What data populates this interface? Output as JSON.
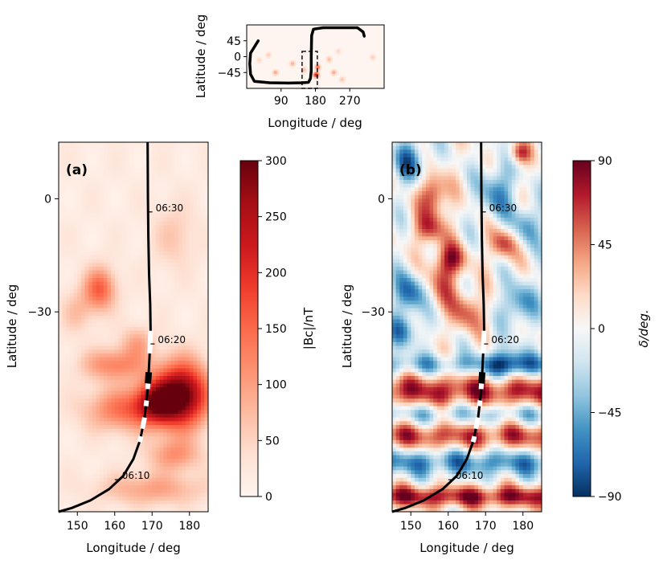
{
  "figure": {
    "inset": {
      "xlabel": "Longitude / deg",
      "ylabel": "Latitude / deg",
      "xticks": [
        {
          "value": 90,
          "label": "90"
        },
        {
          "value": 180,
          "label": "180"
        },
        {
          "value": 270,
          "label": "270"
        }
      ],
      "yticks": [
        {
          "value": 45,
          "label": "45"
        },
        {
          "value": 0,
          "label": "0"
        },
        {
          "value": -45,
          "label": "−45"
        }
      ],
      "xlim": [
        0,
        360
      ],
      "ylim": [
        -90,
        90
      ],
      "box": {
        "lon": [
          145,
          185
        ],
        "lat": [
          -90,
          15
        ]
      }
    },
    "panel_a": {
      "label": "(a)",
      "colorbar_label": "|Bc|/nT",
      "colorbar_ticks": [
        "0",
        "50",
        "100",
        "150",
        "200",
        "250",
        "300"
      ]
    },
    "panel_b": {
      "label": "(b)",
      "colorbar_label": "δ/deg.",
      "colorbar_ticks": [
        "−90",
        "−45",
        "0",
        "45",
        "90"
      ]
    },
    "main_xlabel": "Longitude / deg",
    "main_ylabel": "Latitude / deg",
    "main_xticks": [
      "150",
      "160",
      "170",
      "180"
    ],
    "main_yticks": [
      "0",
      "−30"
    ],
    "time_labels": [
      "06:30",
      "06:20",
      "06:10"
    ]
  },
  "colors": {
    "reds_low": "#fff5f0",
    "reds_high": "#67000d",
    "rdbu_neg": "#053061",
    "rdbu_mid": "#f7f7f7",
    "rdbu_pos": "#67001f",
    "track": "#000000",
    "track_gap": "#ffffff"
  },
  "chart_data": [
    {
      "type": "heatmap",
      "title": "(a)",
      "xlabel": "Longitude / deg",
      "ylabel": "Latitude / deg",
      "xlim": [
        145,
        185
      ],
      "ylim": [
        -83,
        15
      ],
      "colorbar": {
        "label": "|Bc|/nT",
        "range": [
          0,
          300
        ],
        "ticks": [
          0,
          50,
          100,
          150,
          200,
          250,
          300
        ],
        "cmap": "Reds"
      },
      "hotspots": [
        {
          "lon": 178,
          "lat": -52,
          "value": 290,
          "sigma_lon": 5,
          "sigma_lat": 6
        },
        {
          "lon": 171,
          "lat": -54,
          "value": 180,
          "sigma_lon": 4,
          "sigma_lat": 4
        },
        {
          "lon": 156,
          "lat": -24,
          "value": 140,
          "sigma_lon": 3,
          "sigma_lat": 4
        },
        {
          "lon": 160,
          "lat": -44,
          "value": 110,
          "sigma_lon": 6,
          "sigma_lat": 3
        },
        {
          "lon": 162,
          "lat": -56,
          "value": 120,
          "sigma_lon": 7,
          "sigma_lat": 4
        },
        {
          "lon": 176,
          "lat": -68,
          "value": 90,
          "sigma_lon": 5,
          "sigma_lat": 3
        },
        {
          "lon": 170,
          "lat": -77,
          "value": 80,
          "sigma_lon": 10,
          "sigma_lat": 3
        },
        {
          "lon": 150,
          "lat": -30,
          "value": 50,
          "sigma_lon": 3,
          "sigma_lat": 4
        },
        {
          "lon": 166,
          "lat": -38,
          "value": 70,
          "sigma_lon": 3,
          "sigma_lat": 3
        },
        {
          "lon": 176,
          "lat": -10,
          "value": 45,
          "sigma_lon": 4,
          "sigma_lat": 6
        }
      ],
      "track": [
        {
          "lon": 168.8,
          "lat": 15
        },
        {
          "lon": 168.9,
          "lat": 0
        },
        {
          "lon": 169.0,
          "lat": -10
        },
        {
          "lon": 169.2,
          "lat": -20
        },
        {
          "lon": 169.5,
          "lat": -28
        },
        {
          "lon": 169.6,
          "lat": -35
        },
        {
          "lon": 169.4,
          "lat": -40
        },
        {
          "lon": 169.1,
          "lat": -46
        },
        {
          "lon": 168.7,
          "lat": -52
        },
        {
          "lon": 168.0,
          "lat": -58
        },
        {
          "lon": 166.8,
          "lat": -64
        },
        {
          "lon": 165.0,
          "lat": -69
        },
        {
          "lon": 162.3,
          "lat": -73.5
        },
        {
          "lon": 158.5,
          "lat": -77
        },
        {
          "lon": 153.5,
          "lat": -80
        },
        {
          "lon": 148.5,
          "lat": -82
        },
        {
          "lon": 145.0,
          "lat": -83
        }
      ],
      "track_gaps_lat": [
        [
          -35,
          -41
        ],
        [
          -48.5,
          -50.5
        ],
        [
          -53.5,
          -55
        ],
        [
          -58,
          -61
        ],
        [
          -63,
          -64.5
        ]
      ],
      "track_thick_lat": [
        -46,
        -49
      ],
      "time_marks": [
        {
          "label": "06:30",
          "lon": 169.0,
          "lat": -3.5
        },
        {
          "label": "06:20",
          "lon": 169.6,
          "lat": -38.5
        },
        {
          "label": "06:10",
          "lon": 160.0,
          "lat": -74.5
        }
      ]
    },
    {
      "type": "heatmap",
      "title": "(b)",
      "xlabel": "Longitude / deg",
      "ylabel": "Latitude / deg",
      "xlim": [
        145,
        185
      ],
      "ylim": [
        -83,
        15
      ],
      "colorbar": {
        "label": "δ/deg.",
        "range": [
          -90,
          90
        ],
        "ticks": [
          -90,
          -45,
          0,
          45,
          90
        ],
        "cmap": "RdBu_r"
      },
      "bands": [
        {
          "lat": -79,
          "value": 75,
          "width": 2
        },
        {
          "lat": -70,
          "value": -55,
          "width": 2.5
        },
        {
          "lat": -63,
          "value": 60,
          "width": 2.5
        },
        {
          "lat": -57,
          "value": -35,
          "width": 2
        },
        {
          "lat": -51,
          "value": 70,
          "width": 3
        },
        {
          "lat": -44,
          "value": -40,
          "width": 2
        }
      ],
      "blobs": [
        {
          "lon": 156,
          "lat": 1,
          "value": 75,
          "sigma_lon": 2.5,
          "sigma_lat": 4
        },
        {
          "lon": 155,
          "lat": -8,
          "value": 60,
          "sigma_lon": 3,
          "sigma_lat": 3
        },
        {
          "lon": 161,
          "lat": -16,
          "value": 60,
          "sigma_lon": 3,
          "sigma_lat": 3
        },
        {
          "lon": 150,
          "lat": -25,
          "value": -70,
          "sigma_lon": 3,
          "sigma_lat": 4
        },
        {
          "lon": 158,
          "lat": -22,
          "value": 50,
          "sigma_lon": 3,
          "sigma_lat": 5
        },
        {
          "lon": 175,
          "lat": -12,
          "value": 65,
          "sigma_lon": 2.5,
          "sigma_lat": 3
        },
        {
          "lon": 173,
          "lat": 2,
          "value": -60,
          "sigma_lon": 3,
          "sigma_lat": 5
        },
        {
          "lon": 181,
          "lat": -7,
          "value": -55,
          "sigma_lon": 2.5,
          "sigma_lat": 4
        },
        {
          "lon": 179,
          "lat": -28,
          "value": -60,
          "sigma_lon": 3,
          "sigma_lat": 4
        },
        {
          "lon": 148,
          "lat": -35,
          "value": -55,
          "sigma_lon": 3,
          "sigma_lat": 3
        },
        {
          "lon": 165,
          "lat": -30,
          "value": 55,
          "sigma_lon": 3,
          "sigma_lat": 4
        },
        {
          "lon": 176,
          "lat": -44,
          "value": -60,
          "sigma_lon": 4,
          "sigma_lat": 3
        },
        {
          "lon": 150,
          "lat": 10,
          "value": -65,
          "sigma_lon": 3,
          "sigma_lat": 4
        },
        {
          "lon": 179,
          "lat": 12,
          "value": 60,
          "sigma_lon": 2,
          "sigma_lat": 2
        }
      ]
    },
    {
      "type": "heatmap",
      "title": "inset",
      "xlabel": "Longitude / deg",
      "ylabel": "Latitude / deg",
      "xlim": [
        0,
        360
      ],
      "ylim": [
        -90,
        90
      ],
      "xticks": [
        90,
        180,
        270
      ],
      "yticks": [
        45,
        0,
        -45
      ],
      "cmap": "Reds",
      "spots": [
        {
          "lon": 182,
          "lat": -52,
          "value": 250
        },
        {
          "lon": 186,
          "lat": -30,
          "value": 160
        },
        {
          "lon": 120,
          "lat": -20,
          "value": 90
        },
        {
          "lon": 75,
          "lat": -45,
          "value": 100
        },
        {
          "lon": 228,
          "lat": -45,
          "value": 100
        },
        {
          "lon": 216,
          "lat": -8,
          "value": 80
        },
        {
          "lon": 150,
          "lat": -38,
          "value": 80
        },
        {
          "lon": 57,
          "lat": 5,
          "value": 60
        },
        {
          "lon": 330,
          "lat": -2,
          "value": 60
        },
        {
          "lon": 240,
          "lat": 15,
          "value": 50
        },
        {
          "lon": 250,
          "lat": -65,
          "value": 70
        },
        {
          "lon": 33,
          "lat": -10,
          "value": 50
        }
      ],
      "track_segments": [
        [
          {
            "lon": 30,
            "lat": 45
          },
          {
            "lon": 10,
            "lat": 10
          },
          {
            "lon": 8,
            "lat": -20
          },
          {
            "lon": 10,
            "lat": -50
          },
          {
            "lon": 20,
            "lat": -70
          },
          {
            "lon": 60,
            "lat": -74
          },
          {
            "lon": 110,
            "lat": -75
          },
          {
            "lon": 145,
            "lat": -74
          },
          {
            "lon": 162,
            "lat": -73
          },
          {
            "lon": 167,
            "lat": -62
          },
          {
            "lon": 169,
            "lat": -40
          },
          {
            "lon": 169,
            "lat": 0
          },
          {
            "lon": 170,
            "lat": 60
          },
          {
            "lon": 175,
            "lat": 78
          },
          {
            "lon": 200,
            "lat": 82
          },
          {
            "lon": 290,
            "lat": 82
          },
          {
            "lon": 305,
            "lat": 70
          },
          {
            "lon": 308,
            "lat": 58
          }
        ]
      ]
    }
  ]
}
